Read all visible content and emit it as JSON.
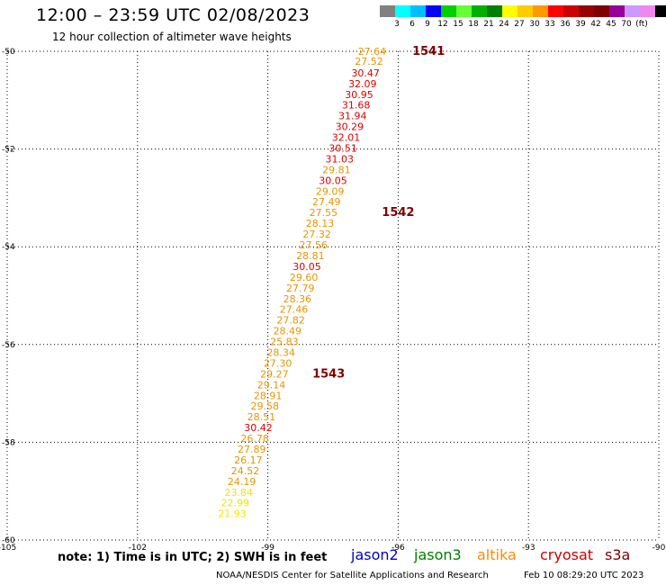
{
  "header": {
    "title": "12:00 – 23:59 UTC 02/08/2023",
    "subtitle": "12 hour collection of altimeter wave heights"
  },
  "colorbar": {
    "colors": [
      "#808080",
      "#00ffff",
      "#00bfff",
      "#0000ff",
      "#00d000",
      "#66ff33",
      "#00b000",
      "#008000",
      "#ffff00",
      "#ffcc00",
      "#ff9900",
      "#ff0000",
      "#cc0000",
      "#990000",
      "#800000",
      "#990099",
      "#cc99ff",
      "#ee88ee",
      "#000000"
    ],
    "labels": [
      "3",
      "6",
      "9",
      "12",
      "15",
      "18",
      "21",
      "24",
      "27",
      "30",
      "33",
      "36",
      "39",
      "42",
      "45",
      "70",
      "(ft)"
    ]
  },
  "footer": {
    "note": "note:  1) Time is in UTC;  2) SWH is in feet",
    "satellites": [
      {
        "name": "jason2",
        "color": "#0000cc"
      },
      {
        "name": "jason3",
        "color": "#008000"
      },
      {
        "name": "altika",
        "color": "#ff8c00"
      },
      {
        "name": "cryosat",
        "color": "#cc0000"
      },
      {
        "name": "s3a",
        "color": "#800000"
      }
    ],
    "credit": "NOAA/NESDIS Center for Satellite Applications and Research",
    "timestamp": "Feb 10 08:29:20 UTC 2023"
  },
  "chart_data": {
    "type": "scatter",
    "xlim": [
      -105,
      -90
    ],
    "ylim": [
      -60,
      -50
    ],
    "x_ticks": [
      -105,
      -102,
      -99,
      -96,
      -93,
      -90
    ],
    "x_tick_labels": [
      "-105",
      "-102",
      "-99",
      "-96",
      "-93",
      "-90"
    ],
    "y_ticks": [
      -50,
      -52,
      -54,
      -56,
      -58,
      -60
    ],
    "y_tick_labels": [
      "-50",
      "-52",
      "-54",
      "-56",
      "-58",
      "-60"
    ],
    "grid": true,
    "color_scale": [
      {
        "max": 24,
        "color": "#f2e600"
      },
      {
        "max": 30,
        "color": "#e69500"
      },
      {
        "max": 999,
        "color": "#dd0000"
      }
    ],
    "points": [
      {
        "lon": -96.6,
        "lat": -50.0,
        "value": "27.64"
      },
      {
        "lon": -96.67,
        "lat": -50.2,
        "value": "27.52"
      },
      {
        "lon": -96.75,
        "lat": -50.44,
        "value": "30.47"
      },
      {
        "lon": -96.82,
        "lat": -50.66,
        "value": "32.09"
      },
      {
        "lon": -96.9,
        "lat": -50.88,
        "value": "30.95"
      },
      {
        "lon": -96.97,
        "lat": -51.1,
        "value": "31.68"
      },
      {
        "lon": -97.05,
        "lat": -51.32,
        "value": "31.94"
      },
      {
        "lon": -97.12,
        "lat": -51.54,
        "value": "30.29"
      },
      {
        "lon": -97.2,
        "lat": -51.76,
        "value": "32.01"
      },
      {
        "lon": -97.27,
        "lat": -51.98,
        "value": "30.51"
      },
      {
        "lon": -97.35,
        "lat": -52.2,
        "value": "31.03"
      },
      {
        "lon": -97.42,
        "lat": -52.42,
        "value": "29.81"
      },
      {
        "lon": -97.5,
        "lat": -52.64,
        "value": "30.05"
      },
      {
        "lon": -97.57,
        "lat": -52.86,
        "value": "29.09"
      },
      {
        "lon": -97.65,
        "lat": -53.08,
        "value": "27.49"
      },
      {
        "lon": -97.72,
        "lat": -53.3,
        "value": "27.55"
      },
      {
        "lon": -97.8,
        "lat": -53.52,
        "value": "28.13"
      },
      {
        "lon": -97.87,
        "lat": -53.74,
        "value": "27.32"
      },
      {
        "lon": -97.95,
        "lat": -53.96,
        "value": "27.56"
      },
      {
        "lon": -98.02,
        "lat": -54.18,
        "value": "28.81"
      },
      {
        "lon": -98.1,
        "lat": -54.4,
        "value": "30.05"
      },
      {
        "lon": -98.17,
        "lat": -54.62,
        "value": "29.60"
      },
      {
        "lon": -98.25,
        "lat": -54.84,
        "value": "27.79"
      },
      {
        "lon": -98.32,
        "lat": -55.06,
        "value": "28.36"
      },
      {
        "lon": -98.4,
        "lat": -55.28,
        "value": "27.46"
      },
      {
        "lon": -98.47,
        "lat": -55.5,
        "value": "27.82"
      },
      {
        "lon": -98.55,
        "lat": -55.72,
        "value": "28.49"
      },
      {
        "lon": -98.62,
        "lat": -55.94,
        "value": "25.83"
      },
      {
        "lon": -98.7,
        "lat": -56.16,
        "value": "28.34"
      },
      {
        "lon": -98.77,
        "lat": -56.38,
        "value": "27.30"
      },
      {
        "lon": -98.85,
        "lat": -56.6,
        "value": "29.27"
      },
      {
        "lon": -98.92,
        "lat": -56.82,
        "value": "29.14"
      },
      {
        "lon": -99.0,
        "lat": -57.04,
        "value": "28.91"
      },
      {
        "lon": -99.07,
        "lat": -57.26,
        "value": "29.58"
      },
      {
        "lon": -99.15,
        "lat": -57.48,
        "value": "28.51"
      },
      {
        "lon": -99.22,
        "lat": -57.7,
        "value": "30.42"
      },
      {
        "lon": -99.3,
        "lat": -57.92,
        "value": "26.78"
      },
      {
        "lon": -99.37,
        "lat": -58.14,
        "value": "27.89"
      },
      {
        "lon": -99.45,
        "lat": -58.36,
        "value": "26.17"
      },
      {
        "lon": -99.52,
        "lat": -58.58,
        "value": "24.52"
      },
      {
        "lon": -99.6,
        "lat": -58.8,
        "value": "24.19"
      },
      {
        "lon": -99.67,
        "lat": -59.02,
        "value": "23.84"
      },
      {
        "lon": -99.75,
        "lat": -59.24,
        "value": "22.99"
      },
      {
        "lon": -99.82,
        "lat": -59.46,
        "value": "21.93"
      }
    ],
    "time_labels": [
      {
        "lon": -95.3,
        "lat": -50.0,
        "text": "1541"
      },
      {
        "lon": -96.0,
        "lat": -53.3,
        "text": "1542"
      },
      {
        "lon": -97.6,
        "lat": -56.6,
        "text": "1543"
      }
    ],
    "time_label_color": "#800000"
  }
}
